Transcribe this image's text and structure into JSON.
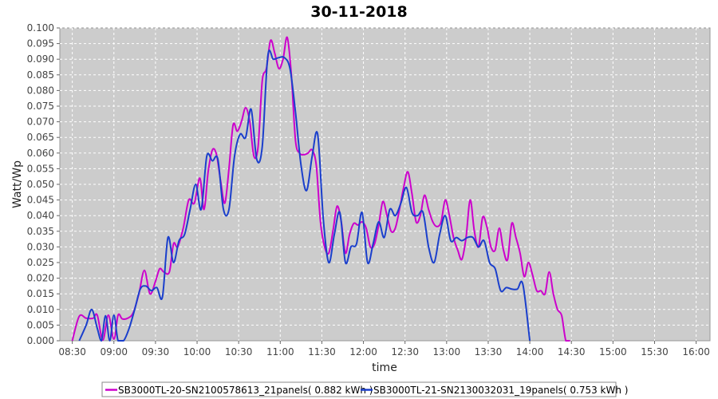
{
  "chart_data": {
    "type": "line",
    "title": "30-11-2018",
    "xlabel": "time",
    "ylabel": "Watt/Wp",
    "x_ticks": [
      "08:30",
      "09:00",
      "09:30",
      "10:00",
      "10:30",
      "11:00",
      "11:30",
      "12:00",
      "12:30",
      "13:00",
      "13:30",
      "14:00",
      "14:30",
      "15:00",
      "15:30",
      "16:00"
    ],
    "y_ticks": [
      "0.000",
      "0.005",
      "0.010",
      "0.015",
      "0.020",
      "0.025",
      "0.030",
      "0.035",
      "0.040",
      "0.045",
      "0.050",
      "0.055",
      "0.060",
      "0.065",
      "0.070",
      "0.075",
      "0.080",
      "0.085",
      "0.090",
      "0.095",
      "0.100"
    ],
    "xlim": [
      "08:21",
      "16:10"
    ],
    "ylim": [
      0,
      0.1
    ],
    "grid": true,
    "legend_position": "bottom",
    "series": [
      {
        "name": "SB3000TL-20-SN2100578613_21panels( 0.882 kWh )",
        "color": "#cc00cc",
        "points": [
          [
            "08:30",
            0.0
          ],
          [
            "08:35",
            0.0078
          ],
          [
            "08:40",
            0.0072
          ],
          [
            "08:45",
            0.0072
          ],
          [
            "08:48",
            0.0082
          ],
          [
            "08:52",
            0.0002
          ],
          [
            "08:56",
            0.0082
          ],
          [
            "09:00",
            0.0005
          ],
          [
            "09:03",
            0.0082
          ],
          [
            "09:06",
            0.007
          ],
          [
            "09:10",
            0.0072
          ],
          [
            "09:14",
            0.009
          ],
          [
            "09:18",
            0.015
          ],
          [
            "09:22",
            0.0225
          ],
          [
            "09:26",
            0.015
          ],
          [
            "09:30",
            0.019
          ],
          [
            "09:33",
            0.023
          ],
          [
            "09:36",
            0.022
          ],
          [
            "09:40",
            0.022
          ],
          [
            "09:43",
            0.031
          ],
          [
            "09:46",
            0.03
          ],
          [
            "09:50",
            0.036
          ],
          [
            "09:54",
            0.045
          ],
          [
            "09:58",
            0.044
          ],
          [
            "10:02",
            0.052
          ],
          [
            "10:05",
            0.042
          ],
          [
            "10:08",
            0.054
          ],
          [
            "10:11",
            0.061
          ],
          [
            "10:14",
            0.0595
          ],
          [
            "10:17",
            0.051
          ],
          [
            "10:20",
            0.044
          ],
          [
            "10:23",
            0.055
          ],
          [
            "10:26",
            0.069
          ],
          [
            "10:29",
            0.067
          ],
          [
            "10:32",
            0.07
          ],
          [
            "10:35",
            0.0745
          ],
          [
            "10:38",
            0.07
          ],
          [
            "10:41",
            0.059
          ],
          [
            "10:44",
            0.062
          ],
          [
            "10:47",
            0.083
          ],
          [
            "10:50",
            0.087
          ],
          [
            "10:53",
            0.096
          ],
          [
            "10:56",
            0.092
          ],
          [
            "10:59",
            0.087
          ],
          [
            "11:02",
            0.09
          ],
          [
            "11:05",
            0.097
          ],
          [
            "11:08",
            0.085
          ],
          [
            "11:11",
            0.064
          ],
          [
            "11:14",
            0.06
          ],
          [
            "11:17",
            0.0595
          ],
          [
            "11:20",
            0.06
          ],
          [
            "11:23",
            0.061
          ],
          [
            "11:26",
            0.056
          ],
          [
            "11:29",
            0.038
          ],
          [
            "11:32",
            0.03
          ],
          [
            "11:35",
            0.028
          ],
          [
            "11:38",
            0.035
          ],
          [
            "11:41",
            0.043
          ],
          [
            "11:44",
            0.038
          ],
          [
            "11:47",
            0.028
          ],
          [
            "11:50",
            0.034
          ],
          [
            "11:53",
            0.0375
          ],
          [
            "11:56",
            0.037
          ],
          [
            "11:59",
            0.038
          ],
          [
            "12:02",
            0.036
          ],
          [
            "12:05",
            0.03
          ],
          [
            "12:08",
            0.031
          ],
          [
            "12:11",
            0.037
          ],
          [
            "12:14",
            0.0445
          ],
          [
            "12:17",
            0.04
          ],
          [
            "12:20",
            0.035
          ],
          [
            "12:23",
            0.036
          ],
          [
            "12:26",
            0.042
          ],
          [
            "12:29",
            0.049
          ],
          [
            "12:32",
            0.054
          ],
          [
            "12:35",
            0.047
          ],
          [
            "12:38",
            0.038
          ],
          [
            "12:41",
            0.04
          ],
          [
            "12:44",
            0.0465
          ],
          [
            "12:47",
            0.042
          ],
          [
            "12:50",
            0.038
          ],
          [
            "12:53",
            0.0365
          ],
          [
            "12:56",
            0.038
          ],
          [
            "12:59",
            0.045
          ],
          [
            "13:02",
            0.04
          ],
          [
            "13:05",
            0.033
          ],
          [
            "13:08",
            0.029
          ],
          [
            "13:11",
            0.026
          ],
          [
            "13:14",
            0.033
          ],
          [
            "13:17",
            0.045
          ],
          [
            "13:20",
            0.035
          ],
          [
            "13:23",
            0.03
          ],
          [
            "13:26",
            0.0395
          ],
          [
            "13:29",
            0.0365
          ],
          [
            "13:32",
            0.03
          ],
          [
            "13:35",
            0.029
          ],
          [
            "13:38",
            0.036
          ],
          [
            "13:41",
            0.029
          ],
          [
            "13:44",
            0.026
          ],
          [
            "13:47",
            0.0375
          ],
          [
            "13:50",
            0.033
          ],
          [
            "13:53",
            0.028
          ],
          [
            "13:56",
            0.0205
          ],
          [
            "13:59",
            0.025
          ],
          [
            "14:02",
            0.021
          ],
          [
            "14:05",
            0.016
          ],
          [
            "14:08",
            0.016
          ],
          [
            "14:11",
            0.015
          ],
          [
            "14:14",
            0.022
          ],
          [
            "14:17",
            0.015
          ],
          [
            "14:20",
            0.01
          ],
          [
            "14:23",
            0.008
          ],
          [
            "14:26",
            0.0
          ],
          [
            "14:29",
            0.0
          ]
        ]
      },
      {
        "name": "SB3000TL-21-SN2130032031_19panels( 0.753 kWh )",
        "color": "#1a3fcc",
        "points": [
          [
            "08:35",
            0.0
          ],
          [
            "08:40",
            0.005
          ],
          [
            "08:44",
            0.01
          ],
          [
            "08:48",
            0.004
          ],
          [
            "08:51",
            0.0
          ],
          [
            "08:54",
            0.008
          ],
          [
            "08:57",
            0.0
          ],
          [
            "09:00",
            0.0082
          ],
          [
            "09:03",
            0.0
          ],
          [
            "09:07",
            0.0
          ],
          [
            "09:11",
            0.004
          ],
          [
            "09:15",
            0.01
          ],
          [
            "09:19",
            0.0165
          ],
          [
            "09:23",
            0.0175
          ],
          [
            "09:27",
            0.016
          ],
          [
            "09:31",
            0.017
          ],
          [
            "09:35",
            0.014
          ],
          [
            "09:39",
            0.033
          ],
          [
            "09:43",
            0.025
          ],
          [
            "09:47",
            0.032
          ],
          [
            "09:51",
            0.034
          ],
          [
            "09:55",
            0.042
          ],
          [
            "09:59",
            0.05
          ],
          [
            "10:03",
            0.042
          ],
          [
            "10:07",
            0.059
          ],
          [
            "10:11",
            0.0575
          ],
          [
            "10:15",
            0.058
          ],
          [
            "10:19",
            0.042
          ],
          [
            "10:23",
            0.042
          ],
          [
            "10:27",
            0.059
          ],
          [
            "10:31",
            0.066
          ],
          [
            "10:35",
            0.065
          ],
          [
            "10:39",
            0.074
          ],
          [
            "10:43",
            0.058
          ],
          [
            "10:47",
            0.062
          ],
          [
            "10:51",
            0.091
          ],
          [
            "10:55",
            0.09
          ],
          [
            "10:59",
            0.0905
          ],
          [
            "11:03",
            0.0905
          ],
          [
            "11:07",
            0.087
          ],
          [
            "11:11",
            0.073
          ],
          [
            "11:15",
            0.056
          ],
          [
            "11:19",
            0.048
          ],
          [
            "11:23",
            0.059
          ],
          [
            "11:27",
            0.066
          ],
          [
            "11:31",
            0.039
          ],
          [
            "11:35",
            0.025
          ],
          [
            "11:39",
            0.034
          ],
          [
            "11:43",
            0.041
          ],
          [
            "11:47",
            0.025
          ],
          [
            "11:51",
            0.03
          ],
          [
            "11:55",
            0.031
          ],
          [
            "11:59",
            0.041
          ],
          [
            "12:03",
            0.025
          ],
          [
            "12:07",
            0.031
          ],
          [
            "12:11",
            0.038
          ],
          [
            "12:15",
            0.033
          ],
          [
            "12:19",
            0.042
          ],
          [
            "12:23",
            0.04
          ],
          [
            "12:27",
            0.044
          ],
          [
            "12:31",
            0.049
          ],
          [
            "12:35",
            0.041
          ],
          [
            "12:39",
            0.04
          ],
          [
            "12:43",
            0.041
          ],
          [
            "12:47",
            0.03
          ],
          [
            "12:51",
            0.025
          ],
          [
            "12:55",
            0.034
          ],
          [
            "12:59",
            0.04
          ],
          [
            "13:03",
            0.032
          ],
          [
            "13:07",
            0.033
          ],
          [
            "13:11",
            0.032
          ],
          [
            "13:15",
            0.033
          ],
          [
            "13:19",
            0.033
          ],
          [
            "13:23",
            0.03
          ],
          [
            "13:27",
            0.032
          ],
          [
            "13:31",
            0.025
          ],
          [
            "13:35",
            0.023
          ],
          [
            "13:39",
            0.016
          ],
          [
            "13:43",
            0.017
          ],
          [
            "13:47",
            0.0165
          ],
          [
            "13:51",
            0.0165
          ],
          [
            "13:55",
            0.018
          ],
          [
            "14:00",
            0.0
          ]
        ]
      }
    ]
  },
  "legend": {
    "items": [
      {
        "label": "SB3000TL-20-SN2100578613_21panels( 0.882 kWh )",
        "color": "#cc00cc"
      },
      {
        "label": "SB3000TL-21-SN2130032031_19panels( 0.753 kWh )",
        "color": "#1a3fcc"
      }
    ]
  }
}
